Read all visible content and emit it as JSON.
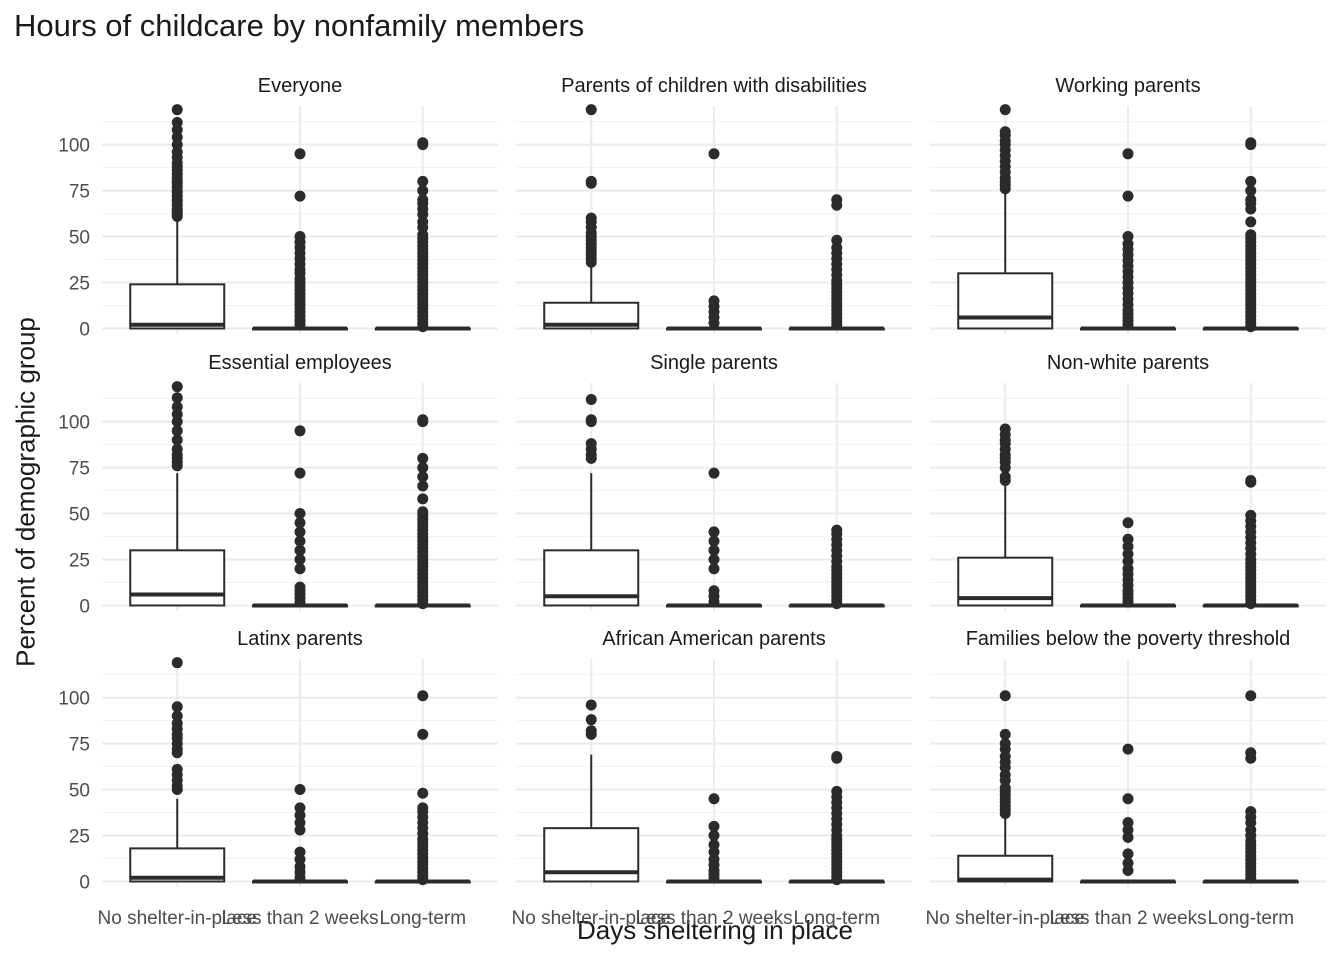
{
  "chart_data": {
    "type": "box",
    "title": "Hours of childcare by nonfamily members",
    "xlabel": "Days sheltering in place",
    "ylabel": "Percent of demographic group",
    "categories": [
      "No shelter-in-place",
      "Less than 2 weeks",
      "Long-term"
    ],
    "y_ticks": [
      0,
      25,
      50,
      75,
      100
    ],
    "ylim": [
      -3,
      121
    ],
    "grid": true,
    "facets": [
      {
        "title": "Everyone",
        "boxes": [
          {
            "q1": 0,
            "median": 2,
            "q3": 24,
            "whisker_low": 0,
            "whisker_high": 60,
            "outliers": [
              61,
              62,
              63,
              64,
              65,
              67,
              69,
              70,
              72,
              74,
              75,
              77,
              79,
              80,
              82,
              84,
              86,
              88,
              90,
              93,
              96,
              100,
              104,
              108,
              112,
              119
            ]
          },
          {
            "q1": 0,
            "median": 0,
            "q3": 0,
            "whisker_low": 0,
            "whisker_high": 0,
            "outliers": [
              2,
              4,
              5,
              7,
              9,
              11,
              13,
              15,
              17,
              19,
              21,
              23,
              25,
              27,
              30,
              32,
              35,
              38,
              41,
              44,
              47,
              50,
              72,
              95
            ]
          },
          {
            "q1": 0,
            "median": 0,
            "q3": 0,
            "whisker_low": 0,
            "whisker_high": 0,
            "outliers": [
              1,
              3,
              5,
              7,
              9,
              11,
              13,
              15,
              17,
              19,
              21,
              23,
              25,
              27,
              29,
              31,
              33,
              35,
              37,
              39,
              41,
              43,
              45,
              47,
              49,
              51,
              55,
              58,
              62,
              65,
              68,
              70,
              75,
              80,
              100,
              101
            ]
          }
        ]
      },
      {
        "title": "Parents of children with disabilities",
        "boxes": [
          {
            "q1": 0,
            "median": 2,
            "q3": 14,
            "whisker_low": 0,
            "whisker_high": 35,
            "outliers": [
              36,
              38,
              40,
              42,
              44,
              46,
              48,
              50,
              52,
              55,
              58,
              60,
              79,
              80,
              119
            ]
          },
          {
            "q1": 0,
            "median": 0,
            "q3": 0,
            "whisker_low": 0,
            "whisker_high": 0,
            "outliers": [
              3,
              6,
              9,
              12,
              15,
              95
            ]
          },
          {
            "q1": 0,
            "median": 0,
            "q3": 0,
            "whisker_low": 0,
            "whisker_high": 0,
            "outliers": [
              2,
              4,
              6,
              8,
              10,
              12,
              14,
              16,
              18,
              20,
              22,
              24,
              26,
              29,
              32,
              35,
              38,
              41,
              44,
              48,
              67,
              70
            ]
          }
        ]
      },
      {
        "title": "Working parents",
        "boxes": [
          {
            "q1": 0,
            "median": 6,
            "q3": 30,
            "whisker_low": 0,
            "whisker_high": 74,
            "outliers": [
              76,
              78,
              80,
              82,
              85,
              88,
              91,
              94,
              97,
              100,
              102,
              105,
              107,
              119
            ]
          },
          {
            "q1": 0,
            "median": 0,
            "q3": 0,
            "whisker_low": 0,
            "whisker_high": 0,
            "outliers": [
              2,
              4,
              6,
              8,
              10,
              13,
              16,
              19,
              22,
              25,
              28,
              31,
              34,
              37,
              40,
              43,
              46,
              50,
              72,
              95
            ]
          },
          {
            "q1": 0,
            "median": 0,
            "q3": 0,
            "whisker_low": 0,
            "whisker_high": 0,
            "outliers": [
              1,
              3,
              5,
              7,
              9,
              11,
              13,
              15,
              17,
              19,
              21,
              23,
              25,
              27,
              29,
              31,
              33,
              35,
              37,
              39,
              41,
              43,
              45,
              47,
              49,
              51,
              58,
              65,
              68,
              70,
              75,
              80,
              100,
              101
            ]
          }
        ]
      },
      {
        "title": "Essential employees",
        "boxes": [
          {
            "q1": 0,
            "median": 6,
            "q3": 30,
            "whisker_low": 0,
            "whisker_high": 72,
            "outliers": [
              76,
              78,
              80,
              82,
              85,
              90,
              95,
              100,
              104,
              108,
              113,
              119
            ]
          },
          {
            "q1": 0,
            "median": 0,
            "q3": 0,
            "whisker_low": 0,
            "whisker_high": 0,
            "outliers": [
              2,
              4,
              6,
              8,
              10,
              20,
              25,
              30,
              35,
              40,
              45,
              50,
              72,
              95
            ]
          },
          {
            "q1": 0,
            "median": 0,
            "q3": 0,
            "whisker_low": 0,
            "whisker_high": 0,
            "outliers": [
              1,
              3,
              5,
              7,
              9,
              11,
              13,
              15,
              17,
              19,
              21,
              23,
              25,
              27,
              29,
              31,
              33,
              35,
              37,
              39,
              41,
              43,
              45,
              47,
              49,
              51,
              58,
              65,
              70,
              75,
              80,
              100,
              101
            ]
          }
        ]
      },
      {
        "title": "Single parents",
        "boxes": [
          {
            "q1": 0,
            "median": 5,
            "q3": 30,
            "whisker_low": 0,
            "whisker_high": 72,
            "outliers": [
              80,
              82,
              85,
              88,
              100,
              101,
              112
            ]
          },
          {
            "q1": 0,
            "median": 0,
            "q3": 0,
            "whisker_low": 0,
            "whisker_high": 0,
            "outliers": [
              2,
              5,
              8,
              20,
              25,
              30,
              35,
              40,
              72
            ]
          },
          {
            "q1": 0,
            "median": 0,
            "q3": 0,
            "whisker_low": 0,
            "whisker_high": 0,
            "outliers": [
              1,
              3,
              5,
              7,
              9,
              11,
              13,
              15,
              17,
              19,
              21,
              24,
              27,
              30,
              33,
              36,
              39,
              41
            ]
          }
        ]
      },
      {
        "title": "Non-white parents",
        "boxes": [
          {
            "q1": 0,
            "median": 4,
            "q3": 26,
            "whisker_low": 0,
            "whisker_high": 65,
            "outliers": [
              68,
              70,
              75,
              78,
              80,
              82,
              85,
              88,
              90,
              93,
              96
            ]
          },
          {
            "q1": 0,
            "median": 0,
            "q3": 0,
            "whisker_low": 0,
            "whisker_high": 0,
            "outliers": [
              2,
              4,
              6,
              8,
              11,
              14,
              17,
              20,
              24,
              28,
              32,
              36,
              45
            ]
          },
          {
            "q1": 0,
            "median": 0,
            "q3": 0,
            "whisker_low": 0,
            "whisker_high": 0,
            "outliers": [
              1,
              3,
              5,
              7,
              9,
              11,
              13,
              15,
              17,
              19,
              21,
              23,
              25,
              28,
              31,
              34,
              37,
              40,
              43,
              46,
              49,
              67,
              68
            ]
          }
        ]
      },
      {
        "title": "Latinx parents",
        "boxes": [
          {
            "q1": 0,
            "median": 2,
            "q3": 18,
            "whisker_low": 0,
            "whisker_high": 45,
            "outliers": [
              50,
              52,
              55,
              58,
              61,
              70,
              72,
              75,
              78,
              80,
              83,
              86,
              90,
              95,
              119
            ]
          },
          {
            "q1": 0,
            "median": 0,
            "q3": 0,
            "whisker_low": 0,
            "whisker_high": 0,
            "outliers": [
              2,
              5,
              8,
              12,
              16,
              28,
              32,
              36,
              40,
              50
            ]
          },
          {
            "q1": 0,
            "median": 0,
            "q3": 0,
            "whisker_low": 0,
            "whisker_high": 0,
            "outliers": [
              1,
              3,
              5,
              7,
              9,
              11,
              13,
              15,
              17,
              19,
              21,
              23,
              26,
              29,
              32,
              35,
              38,
              40,
              48,
              80,
              101
            ]
          }
        ]
      },
      {
        "title": "African American parents",
        "boxes": [
          {
            "q1": 0,
            "median": 5,
            "q3": 29,
            "whisker_low": 0,
            "whisker_high": 69,
            "outliers": [
              80,
              82,
              88,
              96
            ]
          },
          {
            "q1": 0,
            "median": 0,
            "q3": 0,
            "whisker_low": 0,
            "whisker_high": 0,
            "outliers": [
              2,
              4,
              6,
              9,
              12,
              16,
              20,
              25,
              30,
              45
            ]
          },
          {
            "q1": 0,
            "median": 0,
            "q3": 0,
            "whisker_low": 0,
            "whisker_high": 0,
            "outliers": [
              1,
              3,
              5,
              7,
              9,
              11,
              13,
              15,
              17,
              19,
              21,
              23,
              25,
              28,
              31,
              34,
              37,
              40,
              43,
              46,
              49,
              67,
              68
            ]
          }
        ]
      },
      {
        "title": "Families below the poverty threshold",
        "boxes": [
          {
            "q1": 0,
            "median": 1,
            "q3": 14,
            "whisker_low": 0,
            "whisker_high": 35,
            "outliers": [
              37,
              39,
              41,
              43,
              45,
              47,
              49,
              51,
              55,
              58,
              62,
              65,
              68,
              72,
              75,
              80,
              101
            ]
          },
          {
            "q1": 0,
            "median": 0,
            "q3": 0,
            "whisker_low": 0,
            "whisker_high": 0,
            "outliers": [
              6,
              10,
              15,
              24,
              28,
              32,
              45,
              72
            ]
          },
          {
            "q1": 0,
            "median": 0,
            "q3": 0,
            "whisker_low": 0,
            "whisker_high": 0,
            "outliers": [
              2,
              4,
              6,
              8,
              10,
              12,
              14,
              16,
              18,
              20,
              22,
              25,
              28,
              32,
              35,
              38,
              67,
              70,
              101
            ]
          }
        ]
      }
    ]
  }
}
